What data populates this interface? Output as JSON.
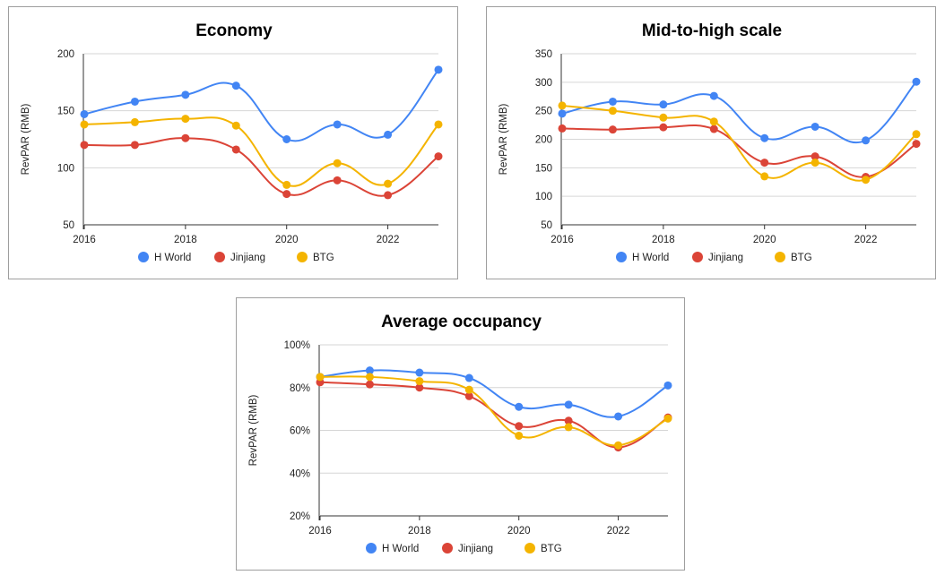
{
  "chart_data": [
    {
      "type": "line",
      "title": "Economy",
      "xlabel": "",
      "ylabel": "RevPAR (RMB)",
      "x": [
        2016,
        2017,
        2018,
        2019,
        2020,
        2021,
        2022,
        2023
      ],
      "xticks": [
        "2016",
        "2018",
        "2020",
        "2022"
      ],
      "xlim": [
        2016,
        2023
      ],
      "ylim": [
        50,
        200
      ],
      "yticks": [
        50,
        100,
        150,
        200
      ],
      "ytick_labels": [
        "50",
        "100",
        "150",
        "200"
      ],
      "grid": true,
      "legend": "bottom",
      "series": [
        {
          "name": "H World",
          "color": "#4285f4",
          "values": [
            147,
            158,
            164,
            172,
            125,
            138,
            129,
            186
          ]
        },
        {
          "name": "Jinjiang",
          "color": "#db4437",
          "values": [
            120,
            120,
            126,
            116,
            77,
            89,
            76,
            110
          ]
        },
        {
          "name": "BTG",
          "color": "#f4b400",
          "values": [
            138,
            140,
            143,
            137,
            85,
            104,
            86,
            138
          ]
        }
      ]
    },
    {
      "type": "line",
      "title": "Mid-to-high scale",
      "xlabel": "",
      "ylabel": "RevPAR (RMB)",
      "x": [
        2016,
        2017,
        2018,
        2019,
        2020,
        2021,
        2022,
        2023
      ],
      "xticks": [
        "2016",
        "2018",
        "2020",
        "2022"
      ],
      "xlim": [
        2016,
        2023
      ],
      "ylim": [
        50,
        350
      ],
      "yticks": [
        50,
        100,
        150,
        200,
        250,
        300,
        350
      ],
      "ytick_labels": [
        "50",
        "100",
        "150",
        "200",
        "250",
        "300",
        "350"
      ],
      "grid": true,
      "legend": "bottom",
      "series": [
        {
          "name": "H World",
          "color": "#4285f4",
          "values": [
            245,
            266,
            261,
            276,
            202,
            222,
            198,
            301
          ]
        },
        {
          "name": "Jinjiang",
          "color": "#db4437",
          "values": [
            219,
            217,
            221,
            218,
            159,
            170,
            134,
            192
          ]
        },
        {
          "name": "BTG",
          "color": "#f4b400",
          "values": [
            259,
            250,
            238,
            231,
            135,
            159,
            129,
            209
          ]
        }
      ]
    },
    {
      "type": "line",
      "title": "Average occupancy",
      "xlabel": "",
      "ylabel": "RevPAR (RMB)",
      "x": [
        2016,
        2017,
        2018,
        2019,
        2020,
        2021,
        2022,
        2023
      ],
      "xticks": [
        "2016",
        "2018",
        "2020",
        "2022"
      ],
      "xlim": [
        2016,
        2023
      ],
      "ylim": [
        20,
        100
      ],
      "yticks": [
        20,
        40,
        60,
        80,
        100
      ],
      "ytick_labels": [
        "20%",
        "40%",
        "60%",
        "80%",
        "100%"
      ],
      "grid": true,
      "legend": "bottom",
      "series": [
        {
          "name": "H World",
          "color": "#4285f4",
          "values": [
            85,
            88,
            87,
            84.5,
            71,
            72,
            66.5,
            81
          ]
        },
        {
          "name": "Jinjiang",
          "color": "#db4437",
          "values": [
            82.5,
            81.5,
            80,
            76,
            62,
            64.5,
            52,
            66
          ]
        },
        {
          "name": "BTG",
          "color": "#f4b400",
          "values": [
            85,
            85,
            83,
            79,
            57.5,
            61.5,
            53,
            65.5
          ]
        }
      ]
    }
  ]
}
